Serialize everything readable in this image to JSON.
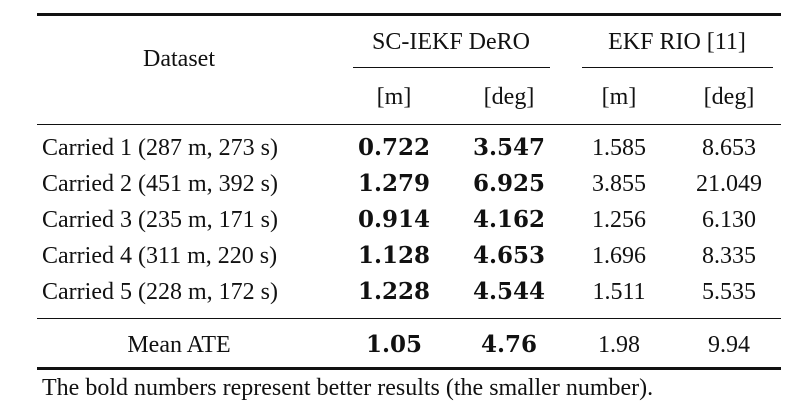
{
  "table": {
    "header": {
      "dataset": "Dataset",
      "groups": [
        "SC-IEKF DeRO",
        "EKF RIO [11]"
      ],
      "units": [
        "[m]",
        "[deg]",
        "[m]",
        "[deg]"
      ]
    },
    "rows": [
      {
        "name": "Carried 1 (287 m, 273 s)",
        "vals": [
          "0.722",
          "3.547",
          "1.585",
          "8.653"
        ]
      },
      {
        "name": "Carried 2 (451 m, 392 s)",
        "vals": [
          "1.279",
          "6.925",
          "3.855",
          "21.049"
        ]
      },
      {
        "name": "Carried 3 (235 m, 171 s)",
        "vals": [
          "0.914",
          "4.162",
          "1.256",
          "6.130"
        ]
      },
      {
        "name": "Carried 4 (311 m, 220 s)",
        "vals": [
          "1.128",
          "4.653",
          "1.696",
          "8.335"
        ]
      },
      {
        "name": "Carried 5 (228 m, 172 s)",
        "vals": [
          "1.228",
          "4.544",
          "1.511",
          "5.535"
        ]
      }
    ],
    "mean": {
      "name": "Mean ATE",
      "vals": [
        "1.05",
        "4.76",
        "1.98",
        "9.94"
      ]
    }
  },
  "caption": "The bold numbers represent better results (the smaller number)."
}
